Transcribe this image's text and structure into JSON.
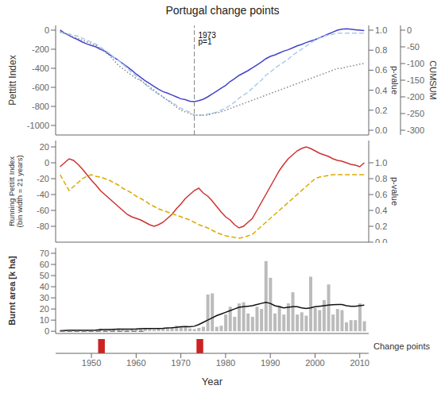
{
  "chart_data": [
    {
      "type": "line",
      "title": "Portugal change points",
      "ylabel": "Pettitt Index",
      "y2label": "p-value",
      "y3label": "CUMSUM",
      "x": [
        1943,
        1944,
        1945,
        1946,
        1947,
        1948,
        1949,
        1950,
        1951,
        1952,
        1953,
        1954,
        1955,
        1956,
        1957,
        1958,
        1959,
        1960,
        1961,
        1962,
        1963,
        1964,
        1965,
        1966,
        1967,
        1968,
        1969,
        1970,
        1971,
        1972,
        1973,
        1974,
        1975,
        1976,
        1977,
        1978,
        1979,
        1980,
        1981,
        1982,
        1983,
        1984,
        1985,
        1986,
        1987,
        1988,
        1989,
        1990,
        1991,
        1992,
        1993,
        1994,
        1995,
        1996,
        1997,
        1998,
        1999,
        2000,
        2001,
        2002,
        2003,
        2004,
        2005,
        2006,
        2007,
        2008,
        2009,
        2010,
        2011
      ],
      "xlim": [
        1942,
        2012
      ],
      "ylim": [
        -1100,
        50
      ],
      "yticks": [
        0,
        -200,
        -400,
        -600,
        -800,
        -1000
      ],
      "y2lim": [
        -0.047619047619047616,
        1.0476190476190477
      ],
      "y2ticks": [
        {
          "value": 0,
          "label": "0.0"
        },
        0.2,
        0.4,
        0.6,
        0.8,
        {
          "value": 1,
          "label": "1.0"
        }
      ],
      "y3lim": [
        -314.2857142857143,
        14.285714285714286
      ],
      "y3ticks": [
        0,
        -50,
        -100,
        -150,
        -200,
        -250,
        -300
      ],
      "grid": false,
      "tick_labels": "y",
      "series": [
        {
          "color": "#4444cc",
          "line_style": "solid",
          "values": [
            0,
            -30,
            -55,
            -80,
            -100,
            -125,
            -145,
            -160,
            -175,
            -200,
            -220,
            -255,
            -285,
            -315,
            -350,
            -385,
            -420,
            -460,
            -495,
            -530,
            -560,
            -590,
            -620,
            -645,
            -660,
            -680,
            -700,
            -720,
            -730,
            -745,
            -750,
            -740,
            -725,
            -700,
            -670,
            -640,
            -610,
            -580,
            -540,
            -510,
            -475,
            -450,
            -425,
            -395,
            -365,
            -335,
            -300,
            -275,
            -260,
            -240,
            -220,
            -205,
            -185,
            -165,
            -150,
            -130,
            -115,
            -100,
            -80,
            -60,
            -40,
            -20,
            0,
            10,
            15,
            10,
            5,
            0,
            -5
          ]
        },
        {
          "color": "#aaccee",
          "line_style": "dashed",
          "axis": "y2",
          "values": [
            0.98,
            0.97,
            0.96,
            0.95,
            0.94,
            0.92,
            0.9,
            0.88,
            0.86,
            0.83,
            0.8,
            0.77,
            0.73,
            0.7,
            0.66,
            0.62,
            0.58,
            0.54,
            0.5,
            0.46,
            0.42,
            0.39,
            0.36,
            0.33,
            0.3,
            0.28,
            0.25,
            0.22,
            0.2,
            0.18,
            0.15,
            0.15,
            0.15,
            0.16,
            0.17,
            0.18,
            0.2,
            0.22,
            0.25,
            0.28,
            0.32,
            0.35,
            0.38,
            0.42,
            0.46,
            0.5,
            0.55,
            0.58,
            0.62,
            0.65,
            0.68,
            0.71,
            0.75,
            0.78,
            0.81,
            0.84,
            0.87,
            0.9,
            0.92,
            0.94,
            0.95,
            0.96,
            0.97,
            0.97,
            0.97,
            0.97,
            0.97,
            0.97,
            0.97
          ]
        },
        {
          "color": "#888888",
          "line_style": "dotted",
          "axis": "y3",
          "values": [
            -5,
            -10,
            -15,
            -20,
            -25,
            -30,
            -35,
            -40,
            -45,
            -55,
            -65,
            -75,
            -90,
            -105,
            -115,
            -125,
            -135,
            -145,
            -150,
            -160,
            -170,
            -180,
            -190,
            -200,
            -210,
            -220,
            -230,
            -240,
            -245,
            -250,
            -255,
            -255,
            -255,
            -255,
            -250,
            -248,
            -245,
            -240,
            -235,
            -230,
            -225,
            -220,
            -215,
            -210,
            -205,
            -200,
            -195,
            -190,
            -185,
            -180,
            -175,
            -170,
            -165,
            -160,
            -155,
            -150,
            -145,
            -140,
            -135,
            -130,
            -125,
            -120,
            -115,
            -115,
            -110,
            -108,
            -105,
            -102,
            -100
          ]
        }
      ],
      "vline": {
        "x": 1973,
        "color": "#888888",
        "line_style": "dashed"
      },
      "annotations": [
        {
          "x": 1973,
          "y": -50,
          "text": "1973"
        },
        {
          "x": 1973,
          "y": -120,
          "text": "p=1"
        }
      ]
    },
    {
      "type": "line",
      "ylabel": "Running Pettitt Index\n(bin width = 21 years)",
      "y2label": "p-value",
      "x": [
        1943,
        1944,
        1945,
        1946,
        1947,
        1948,
        1949,
        1950,
        1951,
        1952,
        1953,
        1954,
        1955,
        1956,
        1957,
        1958,
        1959,
        1960,
        1961,
        1962,
        1963,
        1964,
        1965,
        1966,
        1967,
        1968,
        1969,
        1970,
        1971,
        1972,
        1973,
        1974,
        1975,
        1976,
        1977,
        1978,
        1979,
        1980,
        1981,
        1982,
        1983,
        1984,
        1985,
        1986,
        1987,
        1988,
        1989,
        1990,
        1991,
        1992,
        1993,
        1994,
        1995,
        1996,
        1997,
        1998,
        1999,
        2000,
        2001,
        2002,
        2003,
        2004,
        2005,
        2006,
        2007,
        2008,
        2009,
        2010,
        2011
      ],
      "xlim": [
        1942,
        2012
      ],
      "ylim": [
        -100,
        28
      ],
      "yticks": [
        20,
        0,
        -20,
        -40,
        -60,
        -80
      ],
      "y2lim": [
        0,
        1.28
      ],
      "y2ticks": [
        {
          "value": 0,
          "label": "0.0"
        },
        0.2,
        0.4,
        0.6,
        0.8,
        {
          "value": 1,
          "label": "1.0"
        }
      ],
      "grid": false,
      "tick_labels": "y",
      "series": [
        {
          "color": "#cc3333",
          "line_style": "solid",
          "values": [
            -5,
            0,
            5,
            3,
            -2,
            -8,
            -15,
            -22,
            -28,
            -35,
            -40,
            -45,
            -50,
            -55,
            -60,
            -65,
            -68,
            -70,
            -72,
            -75,
            -78,
            -80,
            -78,
            -75,
            -70,
            -65,
            -58,
            -52,
            -45,
            -40,
            -35,
            -32,
            -38,
            -42,
            -48,
            -55,
            -62,
            -68,
            -72,
            -78,
            -82,
            -80,
            -75,
            -70,
            -60,
            -50,
            -40,
            -30,
            -20,
            -10,
            -2,
            5,
            10,
            15,
            18,
            20,
            18,
            15,
            12,
            10,
            8,
            5,
            3,
            2,
            0,
            -2,
            -3,
            -5,
            0
          ]
        },
        {
          "color": "#ddaa00",
          "line_style": "dashed",
          "axis": "y2",
          "values": [
            0.85,
            0.75,
            0.65,
            0.7,
            0.75,
            0.8,
            0.83,
            0.85,
            0.83,
            0.82,
            0.8,
            0.78,
            0.75,
            0.72,
            0.68,
            0.65,
            0.62,
            0.58,
            0.55,
            0.52,
            0.48,
            0.45,
            0.42,
            0.4,
            0.38,
            0.36,
            0.34,
            0.32,
            0.3,
            0.28,
            0.25,
            0.22,
            0.2,
            0.18,
            0.15,
            0.12,
            0.1,
            0.08,
            0.07,
            0.06,
            0.05,
            0.06,
            0.08,
            0.1,
            0.15,
            0.2,
            0.25,
            0.3,
            0.35,
            0.4,
            0.45,
            0.5,
            0.55,
            0.6,
            0.65,
            0.7,
            0.75,
            0.8,
            0.82,
            0.83,
            0.84,
            0.85,
            0.85,
            0.85,
            0.85,
            0.85,
            0.85,
            0.85,
            0.85
          ]
        }
      ]
    },
    {
      "type": "bar",
      "ylabel": "Burnt area [k ha]",
      "x": [
        1943,
        1944,
        1945,
        1946,
        1947,
        1948,
        1949,
        1950,
        1951,
        1952,
        1953,
        1954,
        1955,
        1956,
        1957,
        1958,
        1959,
        1960,
        1961,
        1962,
        1963,
        1964,
        1965,
        1966,
        1967,
        1968,
        1969,
        1970,
        1971,
        1972,
        1973,
        1974,
        1975,
        1976,
        1977,
        1978,
        1979,
        1980,
        1981,
        1982,
        1983,
        1984,
        1985,
        1986,
        1987,
        1988,
        1989,
        1990,
        1991,
        1992,
        1993,
        1994,
        1995,
        1996,
        1997,
        1998,
        1999,
        2000,
        2001,
        2002,
        2003,
        2004,
        2005,
        2006,
        2007,
        2008,
        2009,
        2010,
        2011
      ],
      "xlim": [
        1942,
        2012
      ],
      "ylim": [
        -2,
        75
      ],
      "yticks": [
        0,
        10,
        20,
        30,
        40,
        50,
        60,
        70
      ],
      "grid": false,
      "tick_labels": "y",
      "series": [
        {
          "type": "bar",
          "color": "#bbbbbb",
          "values": [
            0.5,
            0.8,
            0.9,
            1.0,
            0.8,
            0.7,
            0.8,
            0.9,
            1.2,
            2.5,
            1.0,
            1.5,
            2.0,
            2.5,
            1.5,
            1.2,
            2.0,
            1.8,
            2.5,
            3.0,
            2.0,
            1.5,
            2.5,
            3.0,
            2.5,
            3.5,
            5.0,
            4.0,
            3.5,
            2.5,
            2.0,
            3.0,
            4.0,
            33.0,
            34.0,
            4.0,
            5.0,
            15.0,
            22.0,
            13.0,
            25.0,
            26.0,
            16.0,
            13.0,
            22.0,
            20.0,
            63.0,
            48.0,
            16.0,
            23.0,
            15.0,
            25.0,
            35.0,
            15.0,
            17.0,
            14.0,
            49.0,
            21.0,
            19.0,
            28.0,
            42.0,
            15.0,
            20.0,
            19.0,
            8.0,
            10.0,
            10.0,
            25.0,
            9.0
          ]
        },
        {
          "type": "line",
          "color": "#111111",
          "line_style": "solid",
          "values": [
            0.5,
            0.7,
            0.8,
            0.9,
            0.85,
            0.8,
            0.85,
            0.9,
            1.1,
            1.4,
            1.5,
            1.6,
            1.8,
            2.0,
            2.0,
            1.9,
            2.0,
            2.1,
            2.3,
            2.5,
            2.5,
            2.4,
            2.5,
            2.7,
            3.0,
            3.2,
            3.5,
            4.0,
            4.2,
            4.0,
            4.5,
            6.0,
            8.0,
            10.0,
            12.0,
            14.0,
            15.5,
            17.0,
            18.5,
            20.0,
            21.5,
            22.0,
            22.5,
            23.0,
            24.0,
            25.0,
            26.0,
            25.0,
            23.0,
            22.0,
            21.0,
            21.5,
            22.0,
            22.0,
            21.0,
            20.5,
            21.0,
            22.0,
            22.5,
            23.0,
            23.5,
            23.8,
            24.0,
            24.0,
            23.0,
            22.5,
            22.5,
            23.0,
            23.5
          ]
        },
        {
          "type": "line",
          "color": "gray",
          "line_style": "dashed",
          "values": [
            0,
            0,
            0,
            0,
            0,
            0,
            0,
            0,
            0,
            0,
            0,
            0,
            0,
            0,
            0,
            0,
            0,
            0,
            0,
            0,
            null,
            null,
            null,
            null,
            null,
            null,
            null,
            null,
            null,
            null,
            null,
            null,
            null,
            null,
            null,
            null,
            null,
            null,
            null,
            null,
            null,
            null,
            null,
            null,
            null,
            null,
            null,
            null,
            null,
            null,
            null,
            null,
            null,
            null,
            null,
            null,
            null,
            null,
            null,
            null,
            null,
            null,
            null,
            null,
            null,
            null,
            null,
            null,
            null
          ]
        }
      ]
    },
    {
      "type": "spans",
      "ylabel": "Change points",
      "xlabel": "Year",
      "spans": [
        1952,
        1974
      ],
      "color": "#cc2222",
      "xlim": [
        1942,
        2012
      ],
      "xticks": [
        1950,
        1960,
        1970,
        1980,
        1990,
        2000,
        2010
      ],
      "ylim": [
        0,
        1
      ],
      "grid": false,
      "tick_labels": "x"
    }
  ]
}
